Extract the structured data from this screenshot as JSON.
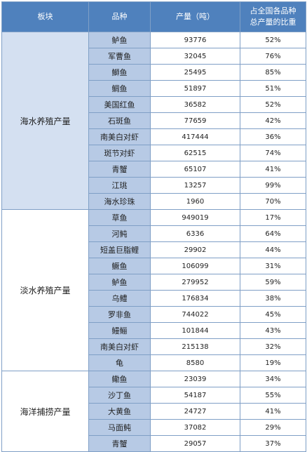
{
  "header": {
    "col1": "板块",
    "col2": "品种",
    "col3": "产量（吨）",
    "col4_line1": "占全国各品种",
    "col4_line2": "总产量的比重"
  },
  "sections": [
    {
      "label": "海水养殖产量",
      "rows": [
        {
          "name": "鲈鱼",
          "output": "93776",
          "share": "52%"
        },
        {
          "name": "军曹鱼",
          "output": "32045",
          "share": "76%"
        },
        {
          "name": "鰤鱼",
          "output": "25495",
          "share": "85%"
        },
        {
          "name": "鲷鱼",
          "output": "51897",
          "share": "51%"
        },
        {
          "name": "美国红鱼",
          "output": "36582",
          "share": "52%"
        },
        {
          "name": "石斑鱼",
          "output": "77659",
          "share": "42%"
        },
        {
          "name": "南美白对虾",
          "output": "417444",
          "share": "36%"
        },
        {
          "name": "斑节对虾",
          "output": "62515",
          "share": "74%"
        },
        {
          "name": "青蟹",
          "output": "65107",
          "share": "41%"
        },
        {
          "name": "江珧",
          "output": "13257",
          "share": "99%"
        },
        {
          "name": "海水珍珠",
          "output": "1960",
          "share": "70%"
        }
      ]
    },
    {
      "label": "淡水养殖产量",
      "rows": [
        {
          "name": "草鱼",
          "output": "949019",
          "share": "17%"
        },
        {
          "name": "河鲀",
          "output": "6336",
          "share": "64%"
        },
        {
          "name": "短盖巨脂鲤",
          "output": "29902",
          "share": "44%"
        },
        {
          "name": "鳜鱼",
          "output": "106099",
          "share": "31%"
        },
        {
          "name": "鲈鱼",
          "output": "279952",
          "share": "59%"
        },
        {
          "name": "乌鳢",
          "output": "176834",
          "share": "38%"
        },
        {
          "name": "罗非鱼",
          "output": "744022",
          "share": "45%"
        },
        {
          "name": "鳗鲡",
          "output": "101844",
          "share": "43%"
        },
        {
          "name": "南美白对虾",
          "output": "215138",
          "share": "32%"
        },
        {
          "name": "龟",
          "output": "8580",
          "share": "19%"
        }
      ]
    },
    {
      "label": "海洋捕捞产量",
      "rows": [
        {
          "name": "鳓鱼",
          "output": "23039",
          "share": "34%"
        },
        {
          "name": "沙丁鱼",
          "output": "54187",
          "share": "55%"
        },
        {
          "name": "大黄鱼",
          "output": "24727",
          "share": "41%"
        },
        {
          "name": "马面鲀",
          "output": "37082",
          "share": "29%"
        },
        {
          "name": "青蟹",
          "output": "29057",
          "share": "37%"
        }
      ]
    }
  ],
  "colors": {
    "header_bg": "#4f81bd",
    "name_cell_bg": "#b7cae5",
    "section_tint": "#d4e0f1",
    "border": "#7f9fc6"
  }
}
